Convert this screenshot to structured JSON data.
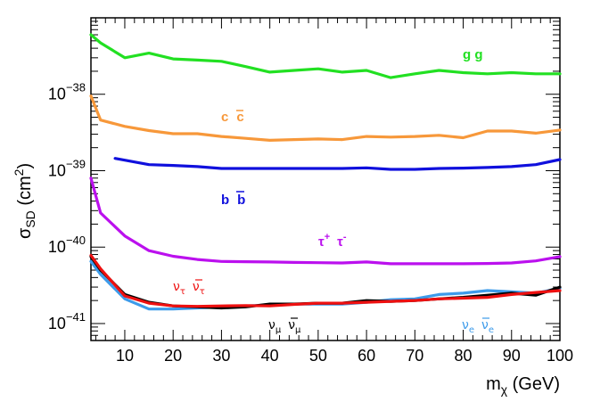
{
  "chart_data": {
    "type": "line",
    "title": "",
    "xlabel": "m",
    "xlabel_sub": "χ",
    "xlabel_unit": " (GeV)",
    "ylabel": "σ",
    "ylabel_sub": "SD",
    "ylabel_unit_pre": " (cm",
    "ylabel_unit_sup": "2",
    "ylabel_unit_post": ")",
    "yscale": "log",
    "xlim": [
      3,
      100
    ],
    "ylim": [
      6e-42,
      1e-37
    ],
    "x_ticks": [
      10,
      20,
      30,
      40,
      50,
      60,
      70,
      80,
      90,
      100
    ],
    "x_tick_labels": [
      "10",
      "20",
      "30",
      "40",
      "50",
      "60",
      "70",
      "80",
      "90",
      "100"
    ],
    "y_major_ticks": [
      {
        "value": 1e-41,
        "base": "10",
        "exp": "−41"
      },
      {
        "value": 1e-40,
        "base": "10",
        "exp": "−40"
      },
      {
        "value": 1e-39,
        "base": "10",
        "exp": "−39"
      },
      {
        "value": 1e-38,
        "base": "10",
        "exp": "−38"
      }
    ],
    "series": [
      {
        "id": "gg",
        "name": "g g",
        "color": "#22e022",
        "x": [
          3,
          5,
          10,
          15,
          20,
          25,
          30,
          35,
          40,
          45,
          50,
          55,
          60,
          65,
          70,
          75,
          80,
          85,
          90,
          95,
          100
        ],
        "y": [
          6e-38,
          4.7e-38,
          3e-38,
          3.45e-38,
          2.9e-38,
          2.8e-38,
          2.7e-38,
          2.3e-38,
          1.95e-38,
          2.05e-38,
          2.15e-38,
          1.95e-38,
          2.05e-38,
          1.65e-38,
          1.85e-38,
          2.05e-38,
          1.92e-38,
          1.85e-38,
          1.92e-38,
          1.85e-38,
          1.85e-38
        ]
      },
      {
        "id": "cc",
        "name": "c",
        "name2": "c",
        "color": "#f7983a",
        "x": [
          3,
          5,
          10,
          15,
          20,
          25,
          30,
          35,
          40,
          45,
          50,
          55,
          60,
          65,
          70,
          75,
          80,
          85,
          90,
          95,
          100
        ],
        "y": [
          9.5e-39,
          4.6e-39,
          3.8e-39,
          3.35e-39,
          3.05e-39,
          3.05e-39,
          2.8e-39,
          2.65e-39,
          2.5e-39,
          2.55e-39,
          2.6e-39,
          2.55e-39,
          2.8e-39,
          2.75e-39,
          2.8e-39,
          2.9e-39,
          2.7e-39,
          3.3e-39,
          3.3e-39,
          3.1e-39,
          3.4e-39
        ]
      },
      {
        "id": "bb",
        "name": "b",
        "name2": "b",
        "color": "#1010dd",
        "x": [
          8,
          15,
          20,
          25,
          30,
          35,
          40,
          45,
          50,
          55,
          60,
          65,
          70,
          75,
          80,
          85,
          90,
          95,
          100
        ],
        "y": [
          1.45e-39,
          1.2e-39,
          1.17e-39,
          1.13e-39,
          1.07e-39,
          1.07e-39,
          1.07e-39,
          1.07e-39,
          1.07e-39,
          1.07e-39,
          1.09e-39,
          1.04e-39,
          1.04e-39,
          1.07e-39,
          1.08e-39,
          1.1e-39,
          1.13e-39,
          1.2e-39,
          1.4e-39
        ]
      },
      {
        "id": "tautau",
        "name": "τ",
        "name_sup": "+",
        "name2": "τ",
        "name2_sup": "-",
        "color": "#bb10ee",
        "x": [
          3,
          5,
          10,
          15,
          20,
          25,
          30,
          35,
          40,
          45,
          50,
          55,
          60,
          65,
          70,
          75,
          80,
          85,
          90,
          95,
          100
        ],
        "y": [
          8e-40,
          2.8e-40,
          1.4e-40,
          9e-41,
          7.6e-41,
          6.9e-41,
          6.5e-41,
          6.45e-41,
          6.4e-41,
          6.3e-41,
          6.25e-41,
          6.2e-41,
          6.4e-41,
          6.05e-41,
          6.05e-41,
          6.05e-41,
          6.05e-41,
          6.1e-41,
          6.2e-41,
          6.6e-41,
          7.5e-41
        ]
      },
      {
        "id": "nue",
        "name": "ν",
        "name_sub": "e",
        "name2": "ν",
        "name2_sub": "e",
        "color": "#3d9bea",
        "x": [
          3,
          5,
          10,
          15,
          20,
          25,
          30,
          35,
          40,
          45,
          50,
          55,
          60,
          65,
          70,
          75,
          80,
          85,
          90,
          95,
          100
        ],
        "y": [
          6.5e-41,
          4.4e-41,
          2.1e-41,
          1.55e-41,
          1.55e-41,
          1.6e-41,
          1.65e-41,
          1.7e-41,
          1.75e-41,
          1.8e-41,
          1.8e-41,
          1.8e-41,
          1.9e-41,
          2.05e-41,
          2.1e-41,
          2.4e-41,
          2.5e-41,
          2.7e-41,
          2.6e-41,
          2.5e-41,
          2.9e-41
        ]
      },
      {
        "id": "numu",
        "name": "ν",
        "name_sub": "μ",
        "name2": "ν",
        "name2_sub": "μ",
        "color": "#000000",
        "x": [
          3,
          5,
          10,
          15,
          20,
          25,
          30,
          35,
          40,
          45,
          50,
          55,
          60,
          65,
          70,
          75,
          80,
          85,
          90,
          95,
          100
        ],
        "y": [
          7.5e-41,
          5e-41,
          2.4e-41,
          1.9e-41,
          1.7e-41,
          1.65e-41,
          1.6e-41,
          1.65e-41,
          1.8e-41,
          1.8e-41,
          1.85e-41,
          1.85e-41,
          2e-41,
          1.95e-41,
          2e-41,
          2.1e-41,
          2.2e-41,
          2.35e-41,
          2.5e-41,
          2.35e-41,
          3e-41
        ]
      },
      {
        "id": "nutau",
        "name": "ν",
        "name_sub": "τ",
        "name2": "ν",
        "name2_sub": "τ",
        "color": "#ee1010",
        "x": [
          3,
          5,
          10,
          15,
          20,
          25,
          30,
          35,
          40,
          45,
          50,
          55,
          60,
          65,
          70,
          75,
          80,
          85,
          90,
          95,
          100
        ],
        "y": [
          7.8e-41,
          5.2e-41,
          2.3e-41,
          1.85e-41,
          1.7e-41,
          1.68e-41,
          1.7e-41,
          1.72e-41,
          1.7e-41,
          1.78e-41,
          1.85e-41,
          1.85e-41,
          1.9e-41,
          1.95e-41,
          2e-41,
          2.1e-41,
          2.15e-41,
          2.2e-41,
          2.4e-41,
          2.55e-41,
          2.7e-41
        ]
      }
    ]
  }
}
